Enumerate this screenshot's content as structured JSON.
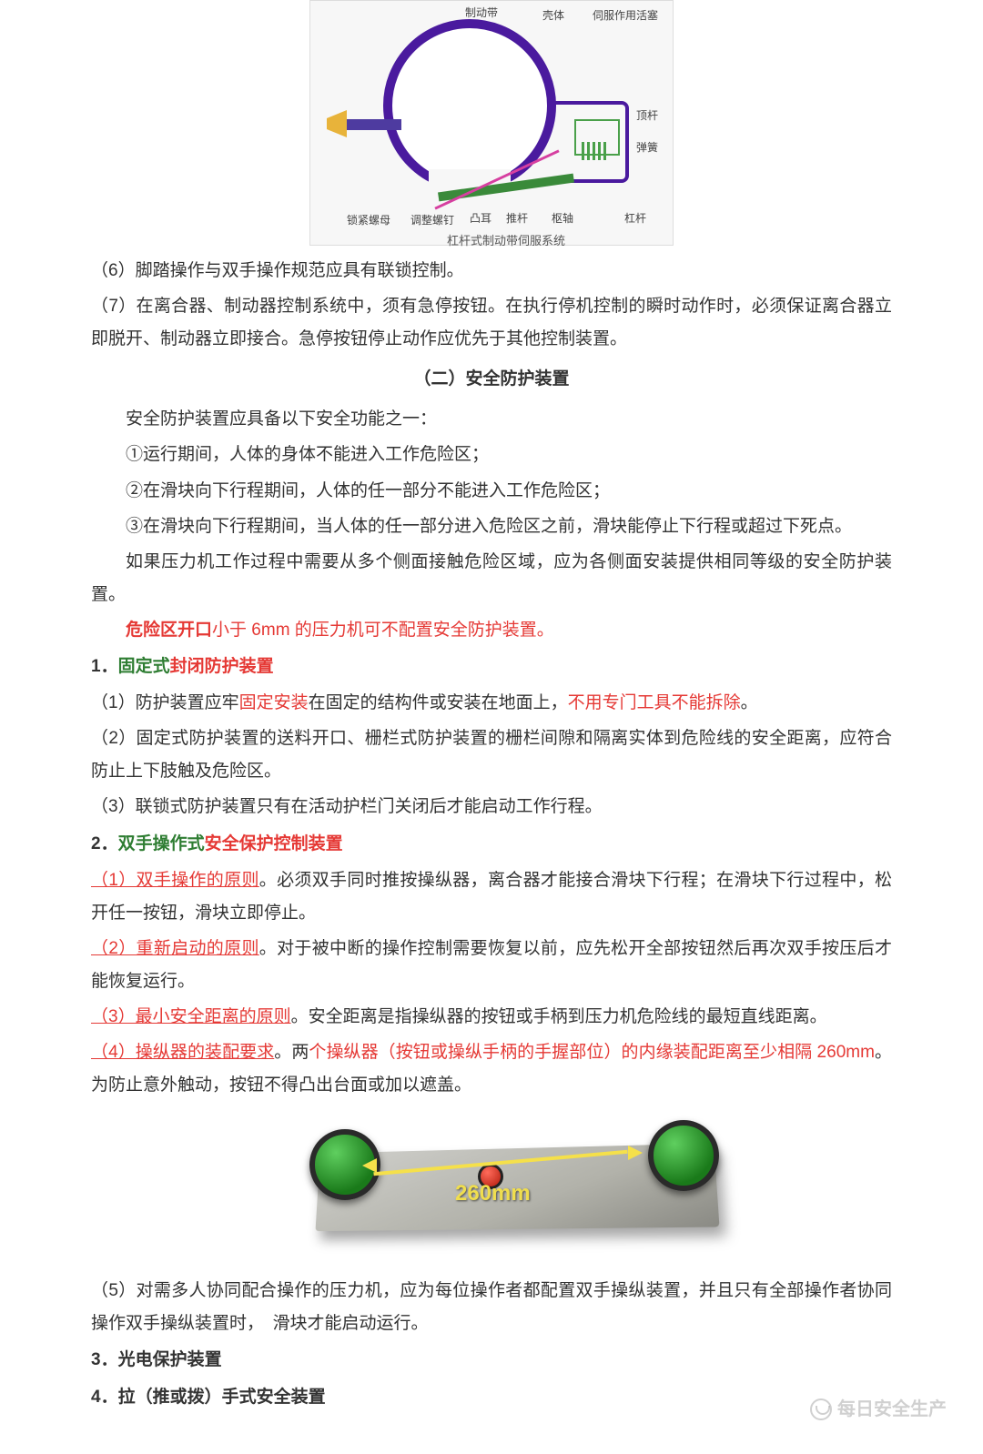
{
  "diagram": {
    "labels": {
      "brake_band": "制动带",
      "shell": "壳体",
      "servo_piston": "伺服作用活塞",
      "push_rod": "顶杆",
      "spring": "弹簧",
      "lock_nut": "锁紧螺母",
      "adjust_screw": "调整螺钉",
      "tab": "凸耳",
      "push_rod2": "推杆",
      "pin": "枢轴",
      "lever": "杠杆"
    },
    "caption": "杠杆式制动带伺服系统"
  },
  "p6": "（6）脚踏操作与双手操作规范应具有联锁控制。",
  "p7": "（7）在离合器、制动器控制系统中，须有急停按钮。在执行停机控制的瞬时动作时，必须保证离合器立即脱开、制动器立即接合。急停按钮停止动作应优先于其他控制装置。",
  "title2": "（二）安全防护装置",
  "s1": "安全防护装置应具备以下安全功能之一：",
  "s2": "①运行期间，人体的身体不能进入工作危险区；",
  "s3": "②在滑块向下行程期间，人体的任一部分不能进入工作危险区；",
  "s4": "③在滑块向下行程期间，当人体的任一部分进入危险区之前，滑块能停止下行程或超过下死点。",
  "s5": "如果压力机工作过程中需要从多个侧面接触危险区域，应为各侧面安装提供相同等级的安全防护装置。",
  "s6a": "危险区开口",
  "s6b": "小于 6mm 的压力机可不配置安全防护装置。",
  "h1a": "1．",
  "h1b": "固定式",
  "h1c": "封闭防护装置",
  "p1_1a": "（1）防护装置应牢",
  "p1_1b": "固定安装",
  "p1_1c": "在固定的结构件或安装在地面上，",
  "p1_1d": "不用专门工具不能拆除",
  "p1_1e": "。",
  "p1_2": "（2）固定式防护装置的送料开口、栅栏式防护装置的栅栏间隙和隔离实体到危险线的安全距离，应符合防止上下肢触及危险区。",
  "p1_3": "（3）联锁式防护装置只有在活动护栏门关闭后才能启动工作行程。",
  "h2a": "2．",
  "h2b": "双手操作式",
  "h2c": "安全保护控制装置",
  "p2_1a": "（1）双手操作的原则",
  "p2_1b": "。必须双手同时推按操纵器，离合器才能接合滑块下行程；在滑块下行过程中，松开任一按钮，滑块立即停止。",
  "p2_2a": "（2）重新启动的原则",
  "p2_2b": "。对于被中断的操作控制需要恢复以前，应先松开全部按钮然后再次双手按压后才能恢复运行。",
  "p2_3a": "（3）最小安全距离的原则",
  "p2_3b": "。安全距离是指操纵器的按钮或手柄到压力机危险线的最短直线距离。",
  "p2_4a": "（4）操纵器的装配要求",
  "p2_4b": "。两",
  "p2_4c": "个操纵器（按钮或操纵手柄的手握部位）的内缘装配距离至少相隔 260mm",
  "p2_4d": "。为防止意外触动，按钮不得凸出台面或加以遮盖。",
  "dist": "260mm",
  "p5": "（5）对需多人协同配合操作的压力机，应为每位操作者都配置双手操纵装置，并且只有全部操作者协同操作双手操纵装置时，　滑块才能启动运行。",
  "h3": "3．光电保护装置",
  "h4": "4．拉（推或拨）手式安全装置",
  "watermark": "每日安全生产"
}
